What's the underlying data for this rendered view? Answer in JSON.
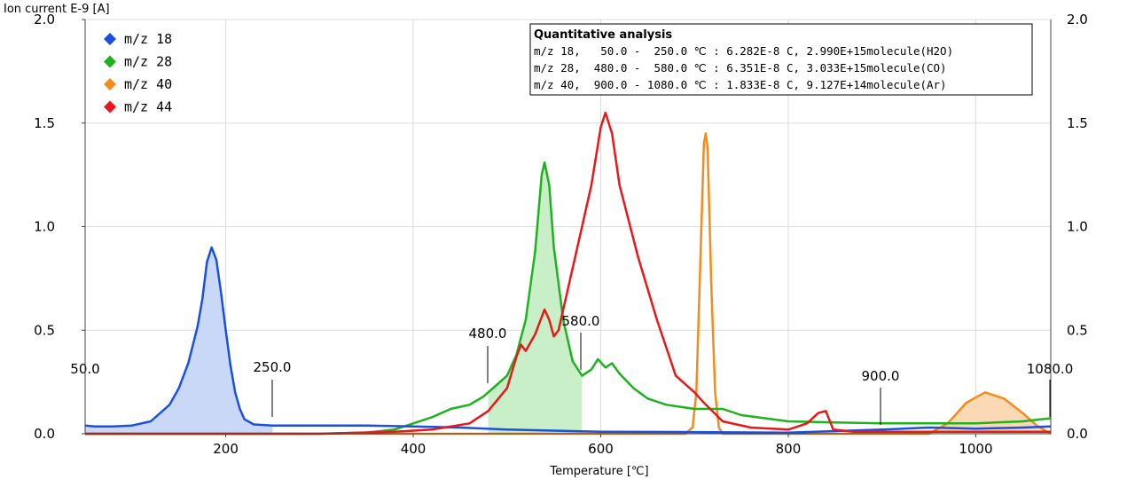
{
  "chart_data": {
    "type": "line",
    "ylabel": "Ion current E-9 [A]",
    "xlabel": "Temperature [℃]",
    "xlim": [
      50,
      1080
    ],
    "ylim": [
      0,
      2.0
    ],
    "x_ticks": [
      200,
      400,
      600,
      800,
      1000
    ],
    "x_tick_labels": [
      "200",
      "400",
      "600",
      "800",
      "1000"
    ],
    "y_ticks": [
      0,
      0.5,
      1.0,
      1.5,
      2.0
    ],
    "y_tick_labels_left": [
      "0.0",
      "0.5",
      "1.0",
      "1.5",
      "2.0"
    ],
    "y_tick_labels_right": [
      "0.0",
      "0.5",
      "1.0",
      "1.5",
      "2.0"
    ],
    "grid": true,
    "legend_position": "top-left",
    "series": [
      {
        "name": "m/z 18",
        "color": "#1a4fe0",
        "fill": "#c9d8f7",
        "integration_range": [
          50,
          250
        ],
        "points": [
          [
            50,
            0.04
          ],
          [
            60,
            0.035
          ],
          [
            80,
            0.035
          ],
          [
            100,
            0.04
          ],
          [
            120,
            0.06
          ],
          [
            140,
            0.14
          ],
          [
            150,
            0.22
          ],
          [
            160,
            0.34
          ],
          [
            170,
            0.52
          ],
          [
            175,
            0.65
          ],
          [
            180,
            0.83
          ],
          [
            185,
            0.9
          ],
          [
            190,
            0.84
          ],
          [
            195,
            0.68
          ],
          [
            200,
            0.5
          ],
          [
            205,
            0.33
          ],
          [
            210,
            0.2
          ],
          [
            215,
            0.12
          ],
          [
            220,
            0.07
          ],
          [
            230,
            0.045
          ],
          [
            250,
            0.04
          ],
          [
            300,
            0.04
          ],
          [
            350,
            0.04
          ],
          [
            400,
            0.035
          ],
          [
            450,
            0.03
          ],
          [
            500,
            0.02
          ],
          [
            550,
            0.015
          ],
          [
            600,
            0.01
          ],
          [
            700,
            0.008
          ],
          [
            800,
            0.005
          ],
          [
            900,
            0.02
          ],
          [
            950,
            0.03
          ],
          [
            1000,
            0.025
          ],
          [
            1050,
            0.03
          ],
          [
            1080,
            0.035
          ]
        ]
      },
      {
        "name": "m/z 28",
        "color": "#1fb21f",
        "fill": "#c8efc8",
        "integration_range": [
          480,
          580
        ],
        "points": [
          [
            50,
            0.0
          ],
          [
            300,
            0.0
          ],
          [
            350,
            0.005
          ],
          [
            380,
            0.02
          ],
          [
            400,
            0.05
          ],
          [
            420,
            0.08
          ],
          [
            440,
            0.12
          ],
          [
            460,
            0.14
          ],
          [
            475,
            0.18
          ],
          [
            490,
            0.24
          ],
          [
            500,
            0.28
          ],
          [
            510,
            0.38
          ],
          [
            520,
            0.55
          ],
          [
            530,
            0.88
          ],
          [
            537,
            1.25
          ],
          [
            540,
            1.31
          ],
          [
            545,
            1.2
          ],
          [
            550,
            0.9
          ],
          [
            560,
            0.55
          ],
          [
            570,
            0.35
          ],
          [
            580,
            0.28
          ],
          [
            590,
            0.31
          ],
          [
            597,
            0.36
          ],
          [
            605,
            0.32
          ],
          [
            612,
            0.34
          ],
          [
            620,
            0.29
          ],
          [
            635,
            0.22
          ],
          [
            650,
            0.17
          ],
          [
            670,
            0.14
          ],
          [
            700,
            0.12
          ],
          [
            730,
            0.12
          ],
          [
            750,
            0.09
          ],
          [
            800,
            0.06
          ],
          [
            850,
            0.055
          ],
          [
            900,
            0.05
          ],
          [
            1000,
            0.05
          ],
          [
            1050,
            0.06
          ],
          [
            1080,
            0.075
          ]
        ]
      },
      {
        "name": "m/z 40",
        "color": "#f28c1c",
        "fill": "#fbd9b5",
        "integration_range": [
          900,
          1080
        ],
        "points": [
          [
            50,
            0.0
          ],
          [
            690,
            0.0
          ],
          [
            698,
            0.03
          ],
          [
            702,
            0.2
          ],
          [
            706,
            0.8
          ],
          [
            710,
            1.4
          ],
          [
            712,
            1.45
          ],
          [
            714,
            1.38
          ],
          [
            718,
            0.7
          ],
          [
            722,
            0.2
          ],
          [
            726,
            0.03
          ],
          [
            730,
            0.0
          ],
          [
            950,
            0.0
          ],
          [
            970,
            0.05
          ],
          [
            990,
            0.15
          ],
          [
            1010,
            0.2
          ],
          [
            1030,
            0.17
          ],
          [
            1050,
            0.1
          ],
          [
            1065,
            0.04
          ],
          [
            1080,
            0.0
          ]
        ]
      },
      {
        "name": "m/z 44",
        "color": "#e8181a",
        "points": [
          [
            50,
            0.0
          ],
          [
            300,
            0.0
          ],
          [
            380,
            0.01
          ],
          [
            420,
            0.02
          ],
          [
            460,
            0.05
          ],
          [
            480,
            0.11
          ],
          [
            500,
            0.22
          ],
          [
            510,
            0.37
          ],
          [
            515,
            0.43
          ],
          [
            520,
            0.4
          ],
          [
            530,
            0.48
          ],
          [
            540,
            0.6
          ],
          [
            545,
            0.55
          ],
          [
            550,
            0.47
          ],
          [
            555,
            0.5
          ],
          [
            560,
            0.6
          ],
          [
            575,
            0.9
          ],
          [
            590,
            1.2
          ],
          [
            600,
            1.48
          ],
          [
            605,
            1.55
          ],
          [
            612,
            1.45
          ],
          [
            620,
            1.2
          ],
          [
            640,
            0.85
          ],
          [
            660,
            0.55
          ],
          [
            680,
            0.28
          ],
          [
            700,
            0.2
          ],
          [
            710,
            0.15
          ],
          [
            730,
            0.06
          ],
          [
            760,
            0.03
          ],
          [
            800,
            0.02
          ],
          [
            820,
            0.05
          ],
          [
            832,
            0.1
          ],
          [
            840,
            0.11
          ],
          [
            848,
            0.02
          ],
          [
            870,
            0.01
          ],
          [
            1080,
            0.01
          ]
        ]
      }
    ],
    "quantitative_analysis": {
      "title": "Quantitative analysis",
      "rows": [
        "m/z 18,   50.0 -  250.0 ℃ : 6.282E-8 C, 2.990E+15molecule(H2O)",
        "m/z 28,  480.0 -  580.0 ℃ : 6.351E-8 C, 3.033E+15molecule(CO)",
        "m/z 40,  900.0 - 1080.0 ℃ : 1.833E-8 C, 9.127E+14molecule(Ar)"
      ]
    },
    "range_markers": [
      {
        "label": "50.0",
        "x": 50
      },
      {
        "label": "250.0",
        "x": 250
      },
      {
        "label": "480.0",
        "x": 480
      },
      {
        "label": "580.0",
        "x": 580
      },
      {
        "label": "900.0",
        "x": 900
      },
      {
        "label": "1080.0",
        "x": 1080
      }
    ]
  }
}
